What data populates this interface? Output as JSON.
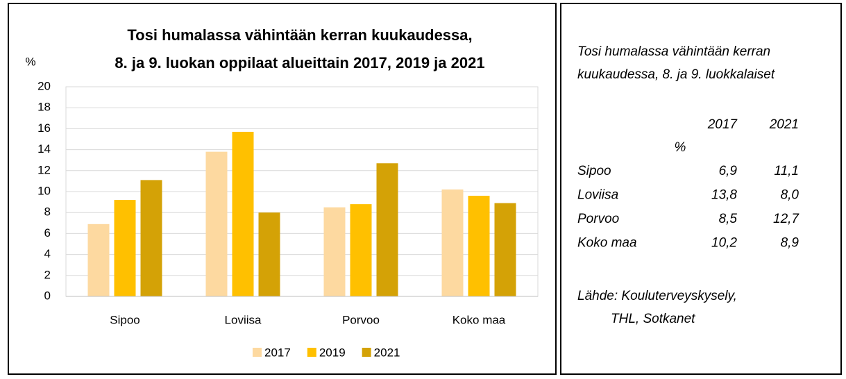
{
  "chart_data": {
    "type": "bar",
    "title": [
      "Tosi humalassa vähintään kerran kuukaudessa,",
      "8. ja 9. luokan oppilaat alueittain 2017, 2019 ja 2021"
    ],
    "ylabel": "%",
    "categories": [
      "Sipoo",
      "Loviisa",
      "Porvoo",
      "Koko maa"
    ],
    "series": [
      {
        "name": "2017",
        "color": "#fdd9a0",
        "values": [
          6.9,
          13.8,
          8.5,
          10.2
        ]
      },
      {
        "name": "2019",
        "color": "#ffc000",
        "values": [
          9.2,
          15.7,
          8.8,
          9.6
        ]
      },
      {
        "name": "2021",
        "color": "#d4a206",
        "values": [
          11.1,
          8.0,
          12.7,
          8.9
        ]
      }
    ],
    "ylim": [
      0,
      20
    ],
    "yticks": [
      0,
      2,
      4,
      6,
      8,
      10,
      12,
      14,
      16,
      18,
      20
    ],
    "grid": true,
    "legend": "bottom"
  },
  "side": {
    "title": [
      "Tosi humalassa vähintään kerran",
      "kuukaudessa, 8. ja 9. luokkalaiset"
    ],
    "header": [
      "2017",
      "2021"
    ],
    "unit": "%",
    "rows": [
      [
        "Sipoo",
        "6,9",
        "11,1"
      ],
      [
        "Loviisa",
        "13,8",
        "8,0"
      ],
      [
        "Porvoo",
        "8,5",
        "12,7"
      ],
      [
        "Koko maa",
        "10,2",
        "8,9"
      ]
    ],
    "source": [
      "Lähde: Kouluterveyskysely,",
      "THL, Sotkanet"
    ]
  }
}
